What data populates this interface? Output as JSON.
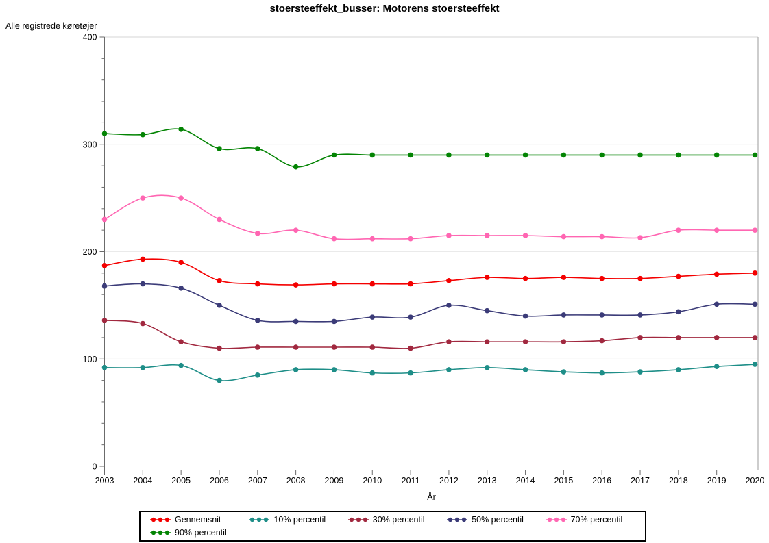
{
  "title": "stoersteeffekt_busser: Motorens stoersteeffekt",
  "chart_data": {
    "type": "line",
    "title": "stoersteeffekt_busser: Motorens stoersteeffekt",
    "xlabel": "År",
    "ylabel": "Alle registrede køretøjer",
    "x": [
      2003,
      2004,
      2005,
      2006,
      2007,
      2008,
      2009,
      2010,
      2011,
      2012,
      2013,
      2014,
      2015,
      2016,
      2017,
      2018,
      2019,
      2020
    ],
    "ylim": [
      0,
      400
    ],
    "yticks": [
      0,
      100,
      200,
      300,
      400
    ],
    "y_minor_tick_step": 20,
    "grid": "horizontal gridlines at 100, 200, 300",
    "legend_position": "bottom-boxed",
    "marker": "filled-circle",
    "series": [
      {
        "name": "Gennemsnit",
        "color": "#F40000",
        "values": [
          187,
          193,
          190,
          173,
          170,
          169,
          170,
          170,
          170,
          173,
          176,
          175,
          176,
          175,
          175,
          177,
          179,
          180
        ]
      },
      {
        "name": "10% percentil",
        "color": "#1E8E88",
        "values": [
          92,
          92,
          94,
          80,
          85,
          90,
          90,
          87,
          87,
          90,
          92,
          90,
          88,
          87,
          88,
          90,
          93,
          95
        ]
      },
      {
        "name": "30% percentil",
        "color": "#A1283F",
        "values": [
          136,
          133,
          116,
          110,
          111,
          111,
          111,
          111,
          110,
          116,
          116,
          116,
          116,
          117,
          120,
          120,
          120,
          120
        ]
      },
      {
        "name": "50% percentil",
        "color": "#3B3B78",
        "values": [
          168,
          170,
          166,
          150,
          136,
          135,
          135,
          139,
          139,
          150,
          145,
          140,
          141,
          141,
          141,
          144,
          151,
          151
        ]
      },
      {
        "name": "70% percentil",
        "color": "#FF66B2",
        "values": [
          230,
          250,
          250,
          230,
          217,
          220,
          212,
          212,
          212,
          215,
          215,
          215,
          214,
          214,
          213,
          220,
          220,
          220
        ]
      },
      {
        "name": "90% percentil",
        "color": "#038403",
        "values": [
          310,
          309,
          314,
          296,
          296,
          279,
          290,
          290,
          290,
          290,
          290,
          290,
          290,
          290,
          290,
          290,
          290,
          290
        ]
      }
    ]
  }
}
